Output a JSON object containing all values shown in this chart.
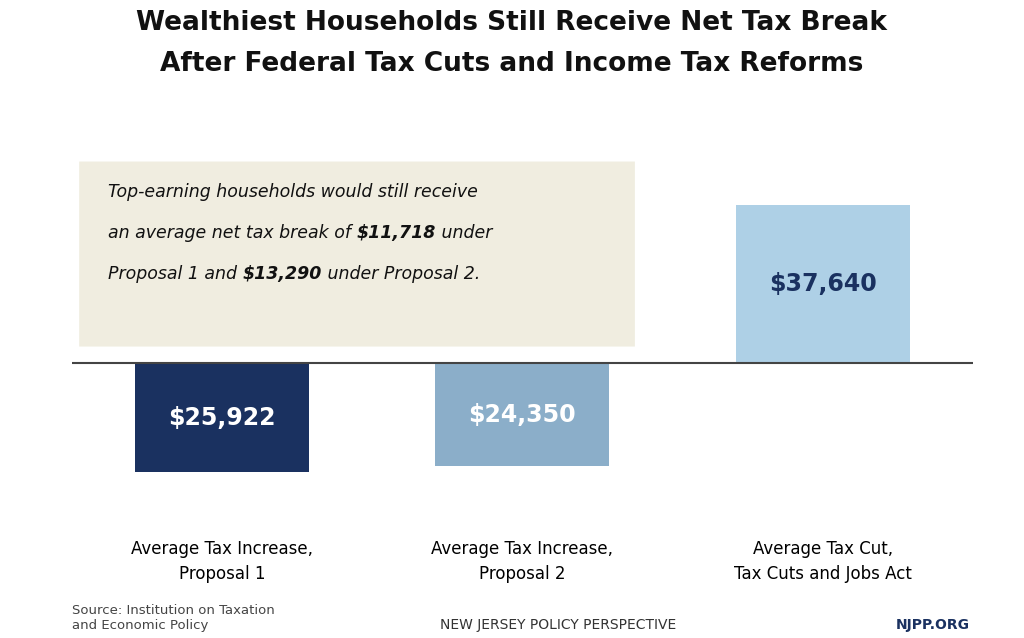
{
  "title_line1": "Wealthiest Households Still Receive Net Tax Break",
  "title_line2": "After Federal Tax Cuts and Income Tax Reforms",
  "categories": [
    "Average Tax Increase,\nProposal 1",
    "Average Tax Increase,\nProposal 2",
    "Average Tax Cut,\nTax Cuts and Jobs Act"
  ],
  "values": [
    -25922,
    -24350,
    37640
  ],
  "bar_labels": [
    "$25,922",
    "$24,350",
    "$37,640"
  ],
  "bar_colors": [
    "#1a3160",
    "#8baec9",
    "#aed0e6"
  ],
  "annotation_box_color": "#f0ede0",
  "source_text": "Source: Institution on Taxation\nand Economic Policy",
  "footer_left": "NEW JERSEY POLICY PERSPECTIVE",
  "footer_right": "NJPP.ORG",
  "footer_right_color": "#1a3160",
  "ylim_min": -38000,
  "ylim_max": 50000,
  "background_color": "#ffffff"
}
